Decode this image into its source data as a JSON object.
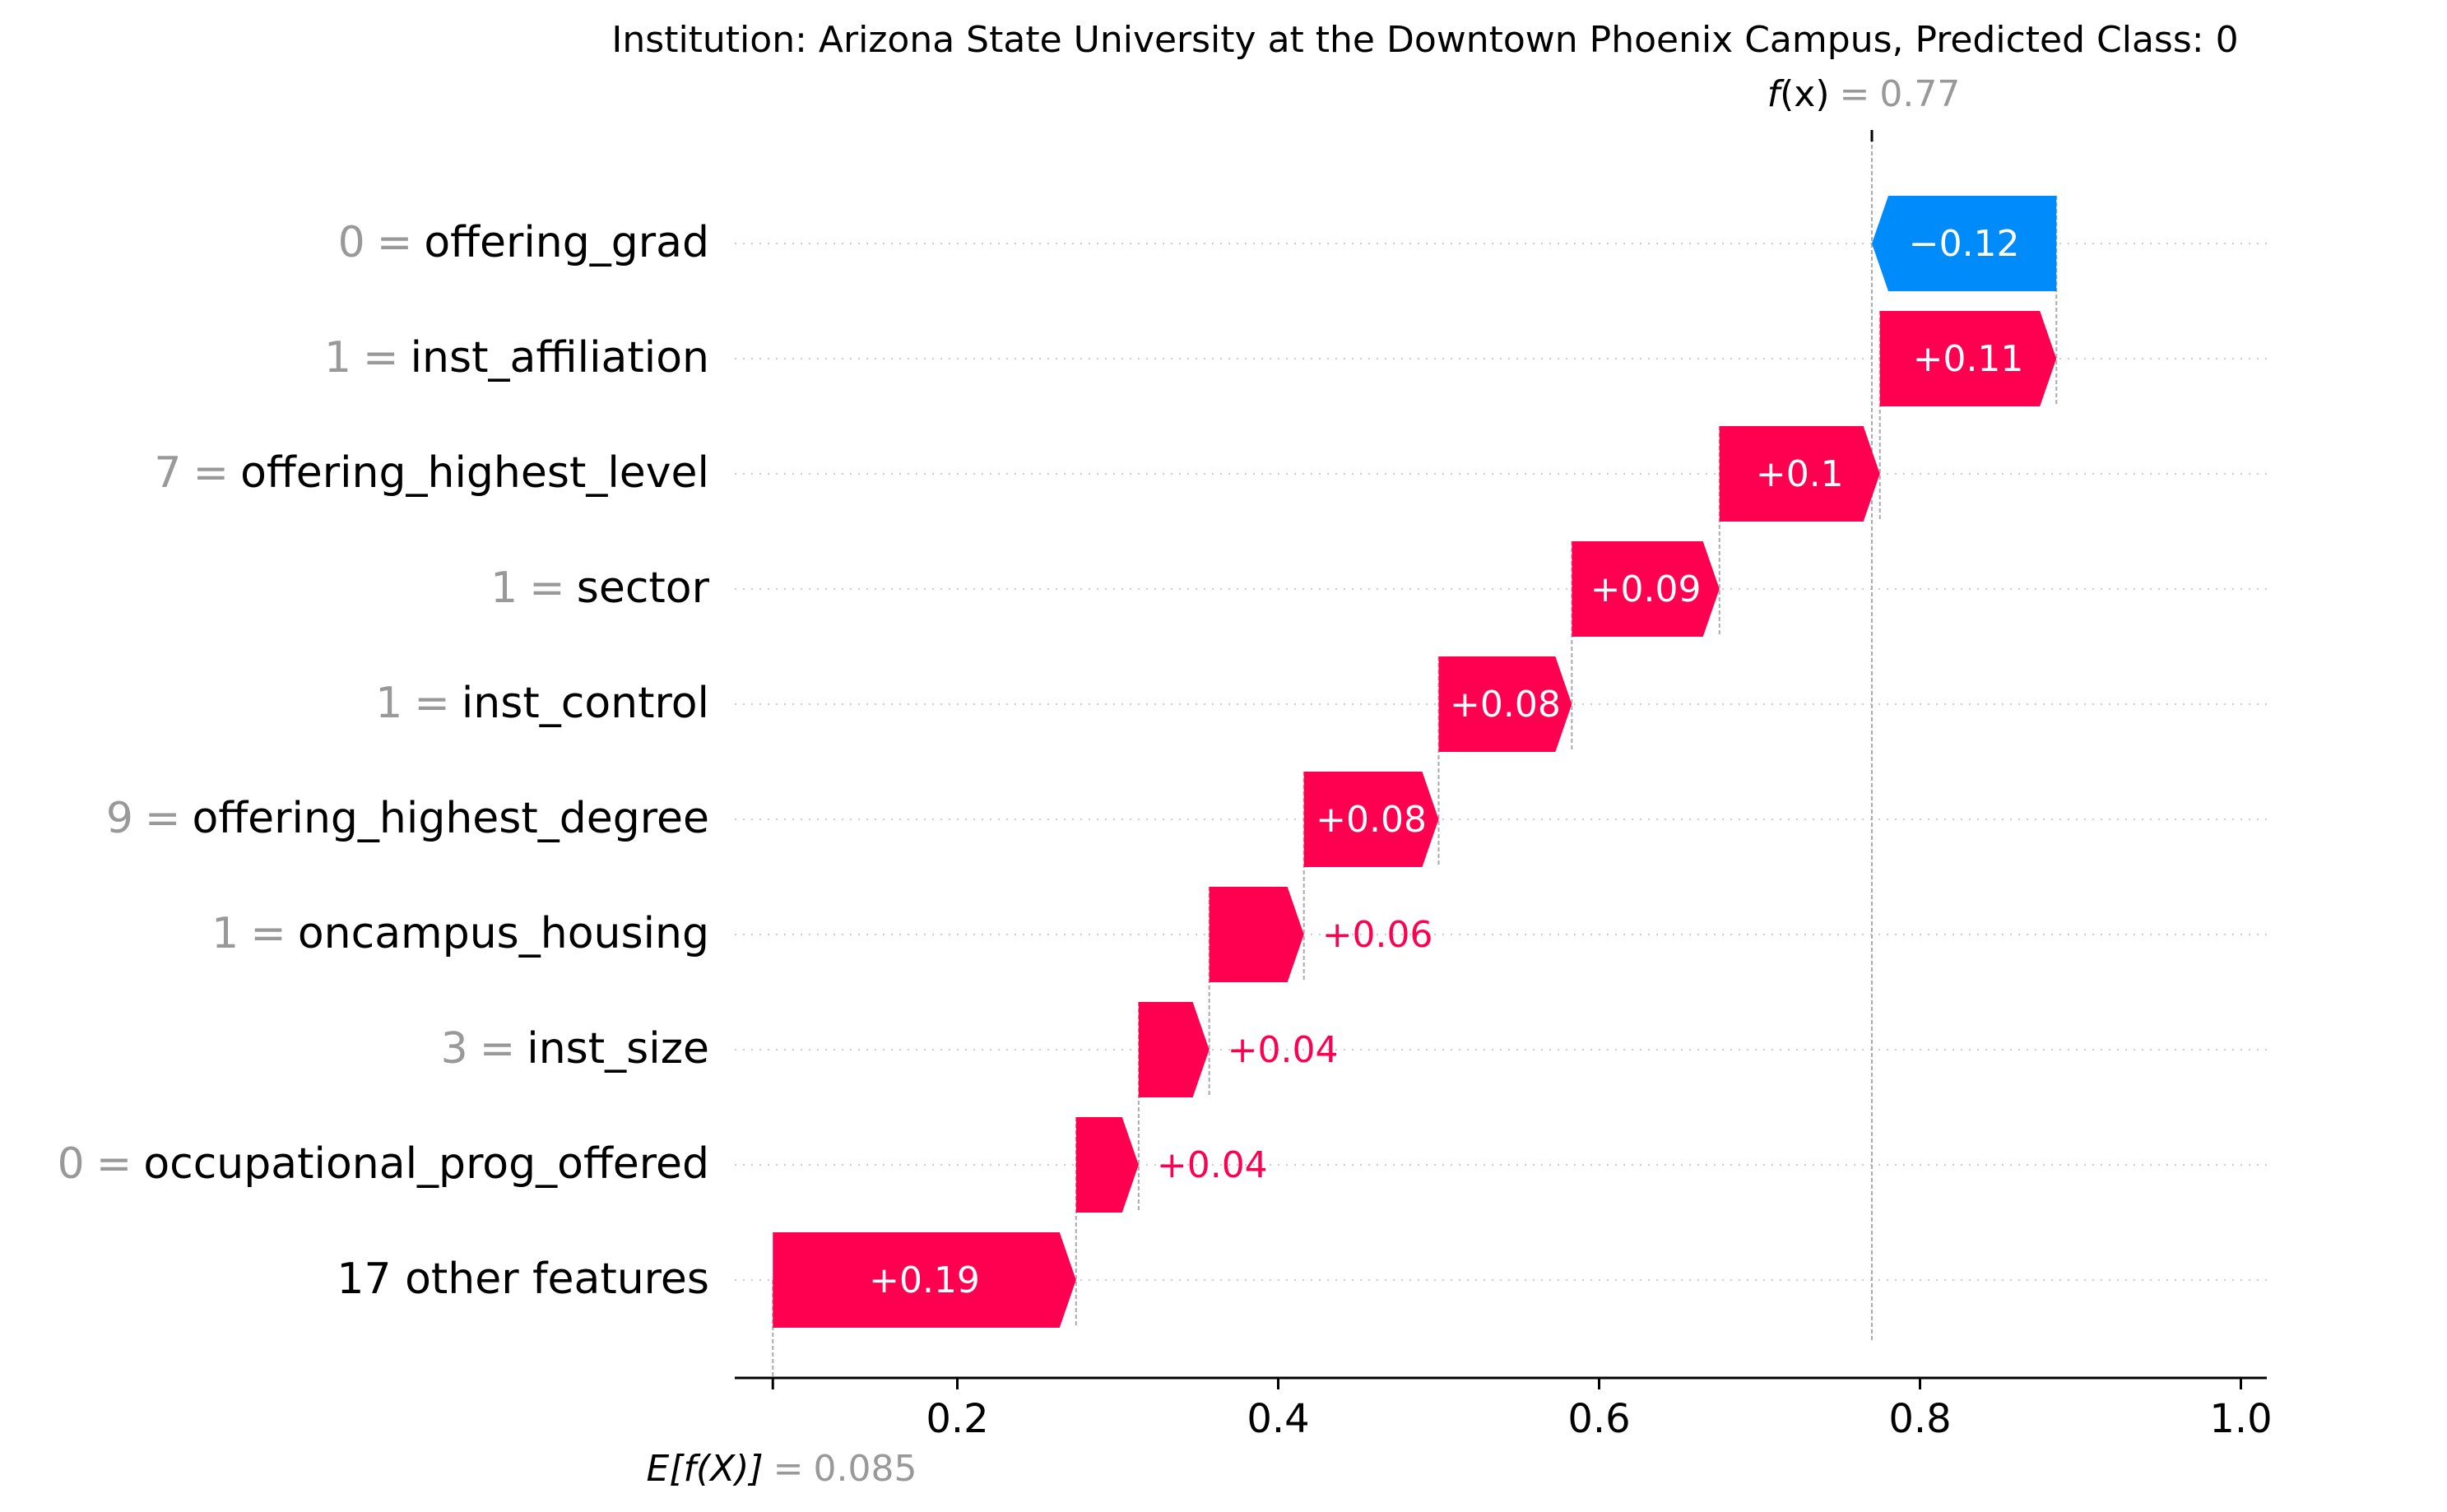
{
  "chart_data": {
    "type": "waterfall",
    "title": "Institution: Arizona State University at the Downtown Phoenix Campus, Predicted Class: 0",
    "fx": {
      "label_f": "f",
      "label_x": "(x)",
      "equals": "=",
      "value": "0.77",
      "numeric": 0.77
    },
    "efx": {
      "label": "E[f(X)]",
      "equals": "=",
      "value": "0.085",
      "numeric": 0.085
    },
    "xlim": [
      0.085,
      1.0
    ],
    "xticks": [
      {
        "value": 0.2,
        "label": "0.2"
      },
      {
        "value": 0.4,
        "label": "0.4"
      },
      {
        "value": 0.6,
        "label": "0.6"
      },
      {
        "value": 0.8,
        "label": "0.8"
      },
      {
        "value": 1.0,
        "label": "1.0"
      }
    ],
    "features": [
      {
        "value_label": "0",
        "name": "offering_grad",
        "start": 0.885,
        "end": 0.77,
        "contribution": "−0.12",
        "sign": "neg",
        "label_inside": true
      },
      {
        "value_label": "1",
        "name": "inst_affiliation",
        "start": 0.775,
        "end": 0.885,
        "contribution": "+0.11",
        "sign": "pos",
        "label_inside": true
      },
      {
        "value_label": "7",
        "name": "offering_highest_level",
        "start": 0.675,
        "end": 0.775,
        "contribution": "+0.1",
        "sign": "pos",
        "label_inside": true
      },
      {
        "value_label": "1",
        "name": "sector",
        "start": 0.583,
        "end": 0.675,
        "contribution": "+0.09",
        "sign": "pos",
        "label_inside": true
      },
      {
        "value_label": "1",
        "name": "inst_control",
        "start": 0.5,
        "end": 0.583,
        "contribution": "+0.08",
        "sign": "pos",
        "label_inside": true
      },
      {
        "value_label": "9",
        "name": "offering_highest_degree",
        "start": 0.416,
        "end": 0.5,
        "contribution": "+0.08",
        "sign": "pos",
        "label_inside": true
      },
      {
        "value_label": "1",
        "name": "oncampus_housing",
        "start": 0.357,
        "end": 0.416,
        "contribution": "+0.06",
        "sign": "pos",
        "label_inside": false
      },
      {
        "value_label": "3",
        "name": "inst_size",
        "start": 0.313,
        "end": 0.357,
        "contribution": "+0.04",
        "sign": "pos",
        "label_inside": false
      },
      {
        "value_label": "0",
        "name": "occupational_prog_offered",
        "start": 0.274,
        "end": 0.313,
        "contribution": "+0.04",
        "sign": "pos",
        "label_inside": false
      },
      {
        "value_label": "",
        "name": "17 other features",
        "start": 0.085,
        "end": 0.274,
        "contribution": "+0.19",
        "sign": "pos",
        "label_inside": true
      }
    ],
    "colors": {
      "positive": "#ff0051",
      "negative": "#008bfb",
      "feature_value_text": "#999999",
      "axis": "#000000",
      "grid_dots": "#cccccc"
    },
    "grid": true
  }
}
